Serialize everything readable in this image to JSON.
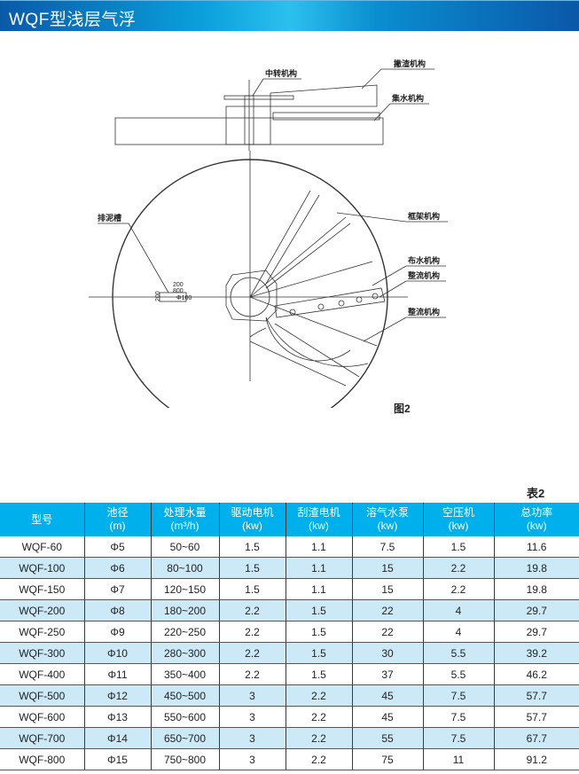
{
  "header": {
    "title": "WQF型浅层气浮"
  },
  "drawing": {
    "labels": {
      "center": "中转机构",
      "skimmer": "撇渣机构",
      "collector": "集水机构",
      "frame": "框架机构",
      "sludge": "排泥槽",
      "distributor": "布水机构",
      "rectifier1": "整流机构",
      "rectifier2": "整流机构"
    },
    "dims": {
      "d1": "200",
      "d2": "800",
      "d3": "200",
      "d4": "Φ100"
    },
    "caption": "图2"
  },
  "table": {
    "caption": "表2",
    "headers": [
      [
        "型号",
        ""
      ],
      [
        "池径",
        "(m)"
      ],
      [
        "处理水量",
        "(m³/h)"
      ],
      [
        "驱动电机",
        "(kw)"
      ],
      [
        "刮渣电机",
        "(kw)"
      ],
      [
        "溶气水泵",
        "(kw)"
      ],
      [
        "空压机",
        "(kw)"
      ],
      [
        "总功率",
        "(kw)"
      ]
    ],
    "rows": [
      [
        "WQF-60",
        "Φ5",
        "50~60",
        "1.5",
        "1.1",
        "7.5",
        "1.5",
        "11.6"
      ],
      [
        "WQF-100",
        "Φ6",
        "80~100",
        "1.5",
        "1.1",
        "15",
        "2.2",
        "19.8"
      ],
      [
        "WQF-150",
        "Φ7",
        "120~150",
        "1.5",
        "1.1",
        "15",
        "2.2",
        "19.8"
      ],
      [
        "WQF-200",
        "Φ8",
        "180~200",
        "2.2",
        "1.5",
        "22",
        "4",
        "29.7"
      ],
      [
        "WQF-250",
        "Φ9",
        "220~250",
        "2.2",
        "1.5",
        "22",
        "4",
        "29.7"
      ],
      [
        "WQF-300",
        "Φ10",
        "280~300",
        "2.2",
        "1.5",
        "30",
        "5.5",
        "39.2"
      ],
      [
        "WQF-400",
        "Φ11",
        "350~400",
        "2.2",
        "1.5",
        "37",
        "5.5",
        "46.2"
      ],
      [
        "WQF-500",
        "Φ12",
        "450~500",
        "3",
        "2.2",
        "45",
        "7.5",
        "57.7"
      ],
      [
        "WQF-600",
        "Φ13",
        "550~600",
        "3",
        "2.2",
        "45",
        "7.5",
        "57.7"
      ],
      [
        "WQF-700",
        "Φ14",
        "650~700",
        "3",
        "2.2",
        "55",
        "7.5",
        "67.7"
      ],
      [
        "WQF-800",
        "Φ15",
        "750~800",
        "3",
        "2.2",
        "75",
        "11",
        "91.2"
      ]
    ]
  }
}
